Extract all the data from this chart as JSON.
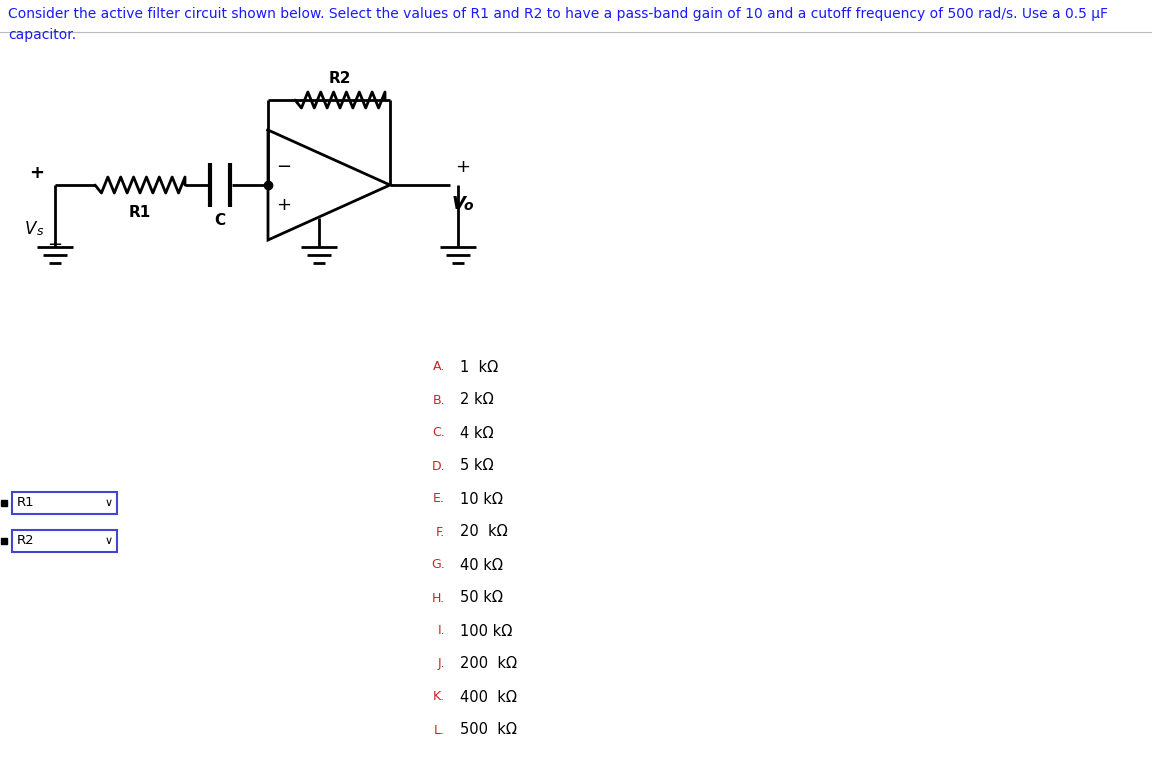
{
  "title_text": "Consider the active filter circuit shown below. Select the values of R1 and R2 to have a pass-band gain of 10 and a cutoff frequency of 500 rad/s. Use a 0.5 μF\ncapacitor.",
  "title_color": "#1a1aff",
  "title_fontsize": 10,
  "background_color": "#ffffff",
  "circuit_color": "#000000",
  "options_label_color": "#cc2222",
  "options_text_color": "#000000",
  "options": [
    {
      "label": "A.",
      "value": "1  kΩ"
    },
    {
      "label": "B.",
      "value": "2 kΩ"
    },
    {
      "label": "C.",
      "value": "4 kΩ"
    },
    {
      "label": "D.",
      "value": "5 kΩ"
    },
    {
      "label": "E.",
      "value": "10 kΩ"
    },
    {
      "label": "F.",
      "value": "20  kΩ"
    },
    {
      "label": "G.",
      "value": "40 kΩ"
    },
    {
      "label": "H.",
      "value": "50 kΩ"
    },
    {
      "label": "I.",
      "value": "100 kΩ"
    },
    {
      "label": "J.",
      "value": "200  kΩ"
    },
    {
      "label": "K.",
      "value": "400  kΩ"
    },
    {
      "label": "L.",
      "value": "500  kΩ"
    }
  ]
}
